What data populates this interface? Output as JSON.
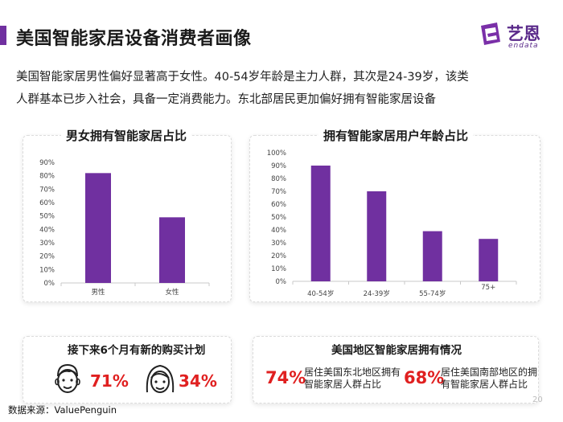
{
  "header": {
    "title": "美国智能家居设备消费者画像",
    "logo_cn": "艺恩",
    "logo_en": "endata",
    "accent": "#7030a0"
  },
  "description": {
    "line1": "美国智能家居男性偏好显著高于女性。40-54岁年龄是主力人群，其次是24-39岁，该类",
    "line2": "人群基本已步入社会，具备一定消费能力。东北部居民更加偏好拥有智能家居设备"
  },
  "chart_data": [
    {
      "type": "bar",
      "title": "男女拥有智能家居占比",
      "categories": [
        "男性",
        "女性"
      ],
      "values": [
        82,
        49
      ],
      "ylim": [
        0,
        90
      ],
      "yticks": [
        "0%",
        "10%",
        "20%",
        "30%",
        "40%",
        "50%",
        "60%",
        "70%",
        "80%",
        "90%"
      ],
      "color": "#7030a0",
      "grid": false
    },
    {
      "type": "bar",
      "title": "拥有智能家居用户年龄占比",
      "categories": [
        "40-54岁",
        "24-39岁",
        "55-74岁",
        "75+"
      ],
      "values": [
        90,
        70,
        39,
        33
      ],
      "ylim": [
        0,
        100
      ],
      "yticks": [
        "0%",
        "10%",
        "20%",
        "30%",
        "40%",
        "50%",
        "60%",
        "70%",
        "80%",
        "90%",
        "100%"
      ],
      "color": "#7030a0",
      "grid": false
    }
  ],
  "plan_panel": {
    "title": "接下来6个月有新的购买计划",
    "male_pct": "71%",
    "female_pct": "34%"
  },
  "region_panel": {
    "title": "美国地区智能家居拥有情况",
    "ne_pct": "74%",
    "ne_label_1": "居住美国东北地区拥有",
    "ne_label_2": "智能家居人群占比",
    "south_pct": "68%",
    "south_label_1": "居住美国南部地区的拥",
    "south_label_2": "有智能家居人群占比"
  },
  "footer": {
    "source": "数据来源：ValuePenguin",
    "page": "20"
  }
}
